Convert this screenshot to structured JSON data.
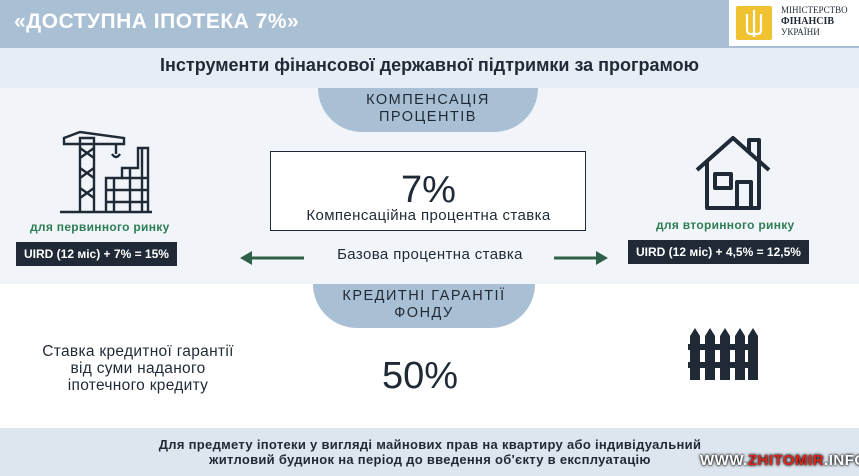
{
  "header": {
    "title": "«ДОСТУПНА ІПОТЕКА 7%»"
  },
  "ministry": {
    "line1": "МІНІСТЕРСТВО",
    "line2": "ФІНАНСІВ",
    "line3": "УКРАЇНИ",
    "logo_icon": "trident-icon"
  },
  "subtitle": "Інструменти фінансової державної підтримки за програмою",
  "compensation": {
    "bubble_line1": "КОМПЕНСАЦІЯ",
    "bubble_line2": "ПРОЦЕНТІВ",
    "rate_value": "7%",
    "rate_label": "Компенсаційна процентна ставка",
    "base_rate_label": "Базова процентна ставка",
    "primary": {
      "label": "для первинного ринку",
      "formula": "UIRD (12 міс) + 7% = 15%",
      "icon": "construction-crane-icon"
    },
    "secondary": {
      "label": "для вторинного ринку",
      "formula": "UIRD (12 міс) + 4,5% = 12,5%",
      "icon": "house-icon"
    }
  },
  "guarantees": {
    "bubble_line1": "КРЕДИТНІ ГАРАНТІЇ",
    "bubble_line2": "ФОНДУ",
    "text_line1": "Ставка кредитної гарантії",
    "text_line2": "від суми наданого",
    "text_line3": "іпотечного кредиту",
    "value": "50%",
    "icon": "fence-icon"
  },
  "footer": {
    "line1": "Для предмету іпотеки у вигляді майнових прав на квартиру або індивідуальний",
    "line2": "житловий будинок на період до введення об'єкту в експлуатацію"
  },
  "watermark": {
    "part1": "WWW.",
    "part2": "ZHITOMIR",
    "part3": ".INFO"
  },
  "colors": {
    "accent_blue": "#a9bfd4",
    "dark": "#1f2a36",
    "green": "#2e7d54",
    "gold": "#f0c230"
  }
}
